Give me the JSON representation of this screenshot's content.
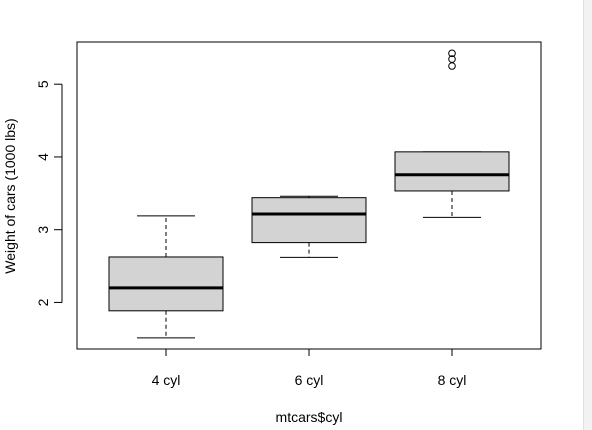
{
  "chart_data": {
    "type": "box",
    "xlabel": "mtcars$cyl",
    "ylabel": "Weight of cars (1000 lbs)",
    "ylim": [
      1.36,
      5.58
    ],
    "yticks": [
      "2",
      "3",
      "4",
      "5"
    ],
    "yticks_values": [
      2,
      3,
      4,
      5
    ],
    "categories": [
      "4 cyl",
      "6 cyl",
      "8 cyl"
    ],
    "box_fill": "#d3d3d3",
    "grid": false,
    "legend": "none",
    "boxes": [
      {
        "name": "4 cyl",
        "whisker_low": 1.513,
        "q1": 1.885,
        "median": 2.2,
        "q3": 2.625,
        "whisker_high": 3.19,
        "outliers": []
      },
      {
        "name": "6 cyl",
        "whisker_low": 2.62,
        "q1": 2.8225,
        "median": 3.215,
        "q3": 3.44,
        "whisker_high": 3.46,
        "outliers": []
      },
      {
        "name": "8 cyl",
        "whisker_low": 3.17,
        "q1": 3.5325,
        "median": 3.755,
        "q3": 4.07,
        "whisker_high": 4.07,
        "outliers": [
          5.25,
          5.345,
          5.424
        ]
      }
    ]
  }
}
